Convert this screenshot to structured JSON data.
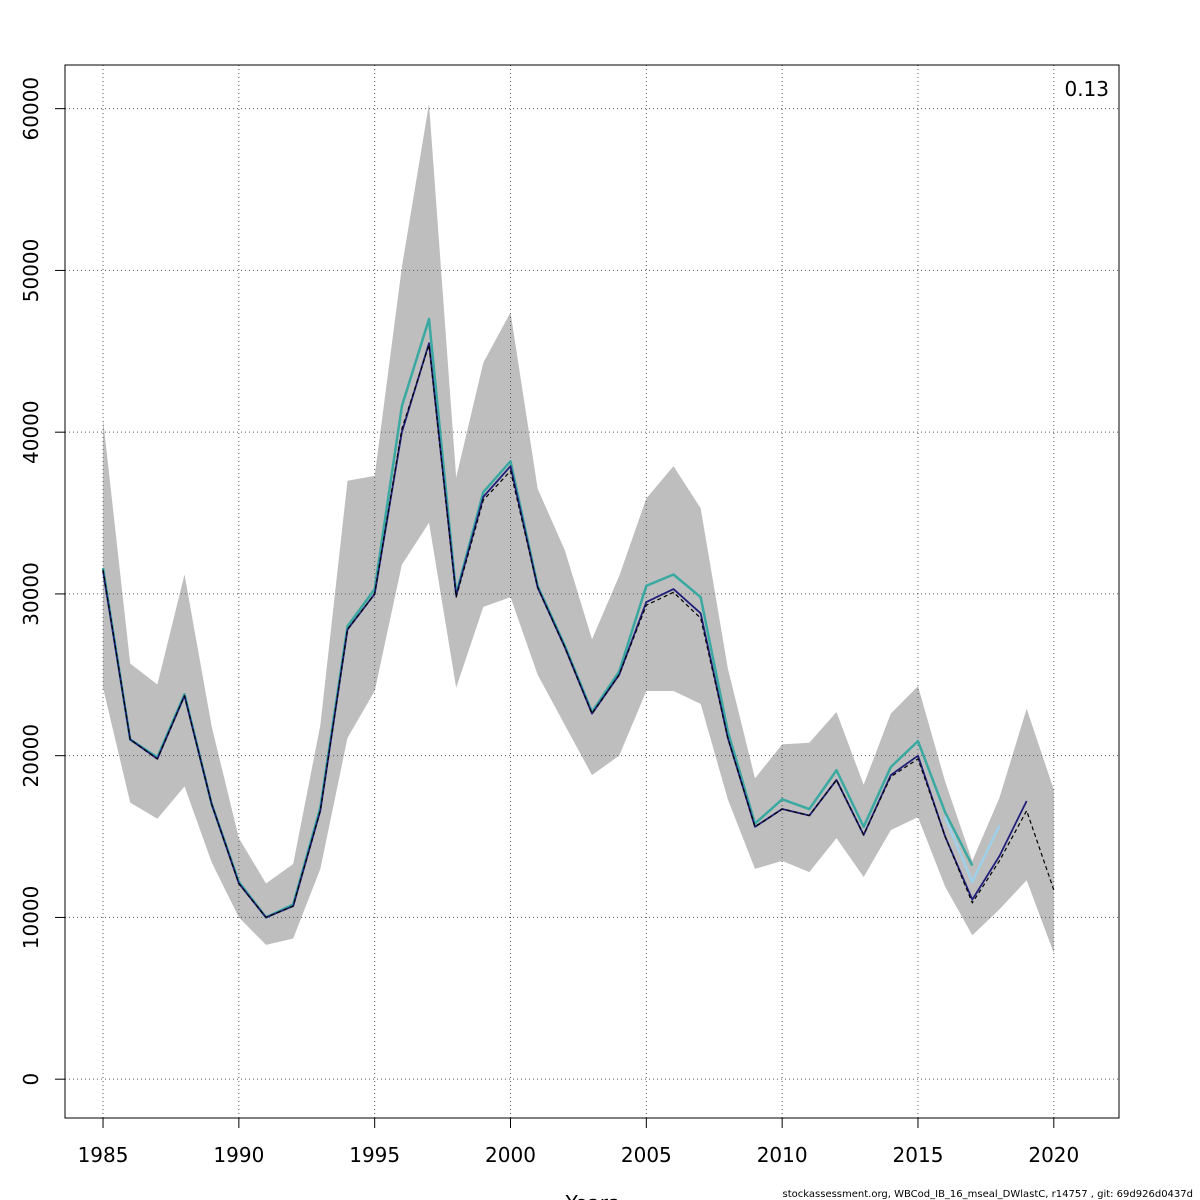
{
  "chart_data": {
    "type": "line",
    "title": "",
    "xlabel": "Years",
    "ylabel": "",
    "annotation": "0.13",
    "footer": "stockassessment.org, WBCod_IB_16_mseal_DWlastC, r14757 , git: 69d926d0437d",
    "xlim": [
      1983.6,
      2022.4
    ],
    "ylim": [
      -2400,
      62700
    ],
    "x_ticks": [
      1985,
      1990,
      1995,
      2000,
      2005,
      2010,
      2015,
      2020
    ],
    "y_ticks": [
      0,
      10000,
      20000,
      30000,
      40000,
      50000,
      60000
    ],
    "grid": true,
    "colors": {
      "band": "#bebebe",
      "grid": "#555555",
      "main": "#3aa9a1",
      "navy": "#1f1f7a",
      "black": "#000000",
      "light": "#9fd0ea"
    },
    "confidence_band": {
      "x": [
        1985,
        1986,
        1987,
        1988,
        1989,
        1990,
        1991,
        1992,
        1993,
        1994,
        1995,
        1996,
        1997,
        1998,
        1999,
        2000,
        2001,
        2002,
        2003,
        2004,
        2005,
        2006,
        2007,
        2008,
        2009,
        2010,
        2011,
        2012,
        2013,
        2014,
        2015,
        2016,
        2017,
        2018,
        2019,
        2020
      ],
      "lower": [
        24200,
        17100,
        16100,
        18100,
        13400,
        10000,
        8300,
        8700,
        13000,
        21100,
        24000,
        31800,
        34400,
        24200,
        29200,
        29800,
        25000,
        21900,
        18800,
        20000,
        24000,
        24000,
        23200,
        17300,
        13000,
        13500,
        12800,
        14900,
        12500,
        15400,
        16200,
        11900,
        8900,
        10500,
        12300,
        7800
      ],
      "upper": [
        40800,
        25700,
        24400,
        31200,
        21800,
        14900,
        12100,
        13300,
        21900,
        37000,
        37300,
        50200,
        60300,
        37200,
        44300,
        47400,
        36500,
        32700,
        27200,
        31100,
        35900,
        37900,
        35300,
        25400,
        18600,
        20700,
        20800,
        22700,
        18200,
        22600,
        24300,
        18400,
        13500,
        17400,
        22900,
        17900
      ]
    },
    "series": [
      {
        "key": "main",
        "x": [
          1985,
          1986,
          1987,
          1988,
          1989,
          1990,
          1991,
          1992,
          1993,
          1994,
          1995,
          1996,
          1997,
          1998,
          1999,
          2000,
          2001,
          2002,
          2003,
          2004,
          2005,
          2006,
          2007,
          2008,
          2009,
          2010,
          2011,
          2012,
          2013,
          2014,
          2015,
          2016,
          2017,
          2018
        ],
        "values": [
          31600,
          21000,
          19900,
          23800,
          17000,
          12200,
          10000,
          10800,
          16800,
          28000,
          30300,
          41600,
          47000,
          30000,
          36300,
          38200,
          30500,
          26800,
          22700,
          25200,
          30500,
          31200,
          29800,
          21500,
          15800,
          17300,
          16700,
          19100,
          15600,
          19300,
          20900,
          16500,
          13200,
          null
        ]
      },
      {
        "key": "light",
        "x": [
          2016,
          2017,
          2018
        ],
        "values": [
          16200,
          12200,
          15700
        ]
      },
      {
        "key": "navy",
        "x": [
          1985,
          1986,
          1987,
          1988,
          1989,
          1990,
          1991,
          1992,
          1993,
          1994,
          1995,
          1996,
          1997,
          1998,
          1999,
          2000,
          2001,
          2002,
          2003,
          2004,
          2005,
          2006,
          2007,
          2008,
          2009,
          2010,
          2011,
          2012,
          2013,
          2014,
          2015,
          2016,
          2017,
          2018,
          2019
        ],
        "values": [
          31400,
          21000,
          19800,
          23700,
          17000,
          12100,
          10000,
          10700,
          16600,
          27800,
          30000,
          40000,
          45500,
          29900,
          36000,
          37900,
          30400,
          26700,
          22600,
          25000,
          29500,
          30300,
          28800,
          21100,
          15600,
          16700,
          16300,
          18500,
          15100,
          18800,
          20000,
          15000,
          11100,
          13800,
          17200
        ]
      },
      {
        "key": "black",
        "dashed": true,
        "x": [
          1985,
          1986,
          1987,
          1988,
          1989,
          1990,
          1991,
          1992,
          1993,
          1994,
          1995,
          1996,
          1997,
          1998,
          1999,
          2000,
          2001,
          2002,
          2003,
          2004,
          2005,
          2006,
          2007,
          2008,
          2009,
          2010,
          2011,
          2012,
          2013,
          2014,
          2015,
          2016,
          2017,
          2018,
          2019,
          2020
        ],
        "values": [
          31500,
          21000,
          19800,
          23700,
          17000,
          12100,
          10000,
          10700,
          16600,
          27800,
          30000,
          40200,
          45400,
          29800,
          35800,
          37600,
          30400,
          26700,
          22600,
          25000,
          29300,
          30100,
          28500,
          21100,
          15600,
          16700,
          16300,
          18500,
          15100,
          18700,
          19800,
          15000,
          10900,
          13500,
          16600,
          11700
        ]
      }
    ]
  }
}
